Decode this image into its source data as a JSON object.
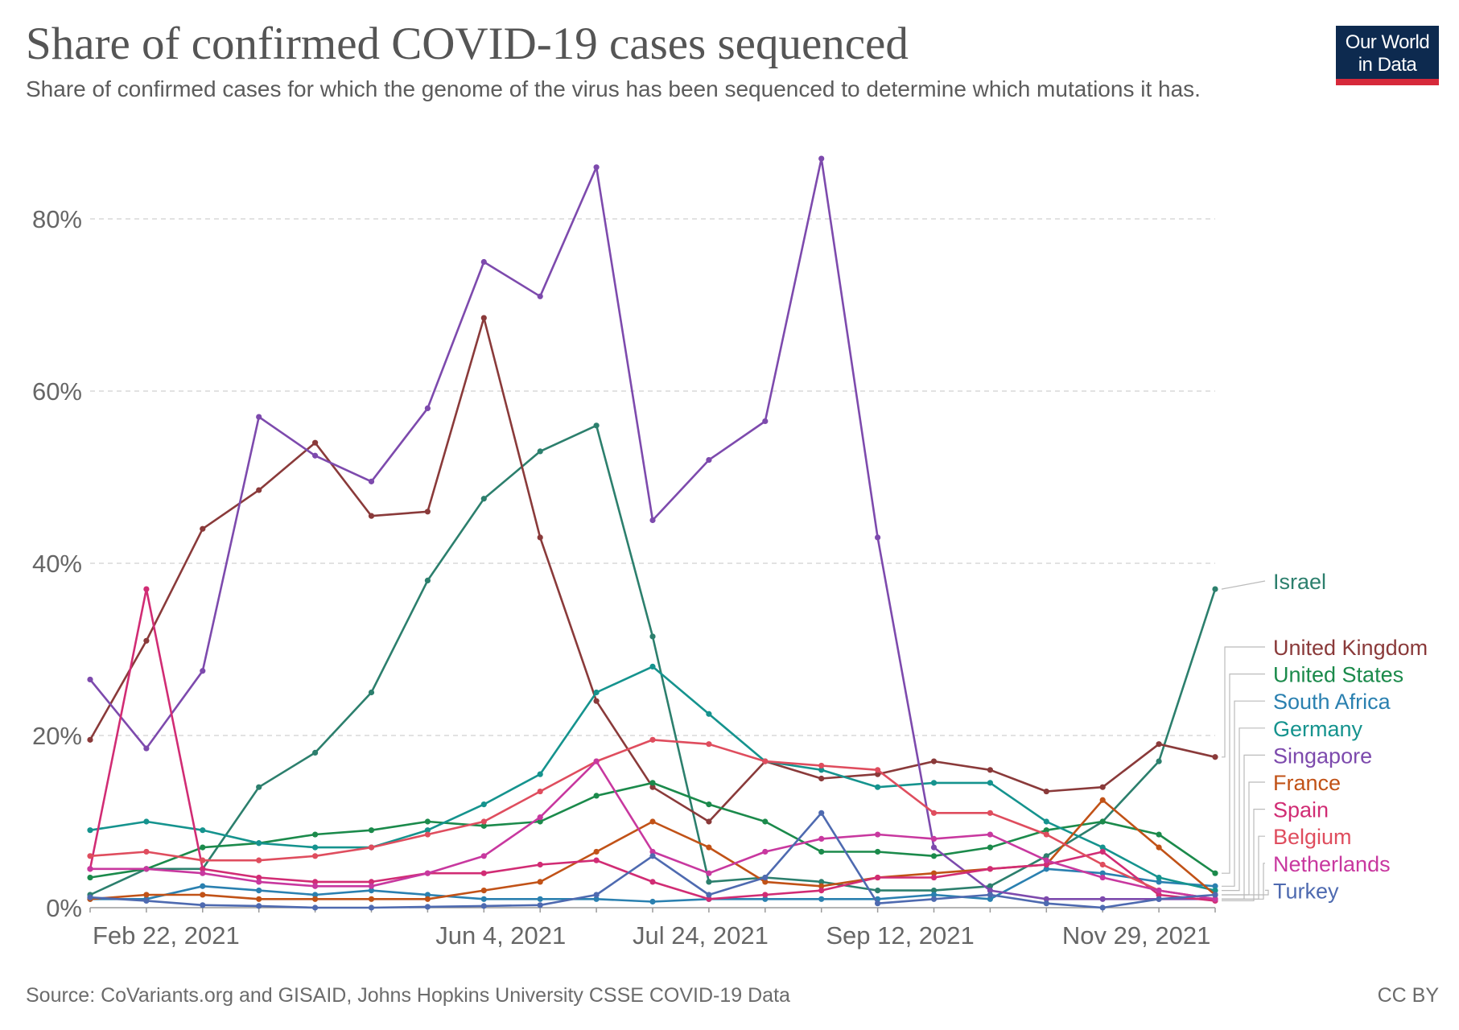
{
  "header": {
    "title": "Share of confirmed COVID-19 cases sequenced",
    "subtitle": "Share of confirmed cases for which the genome of the virus has been sequenced to determine which mutations it has."
  },
  "logo": {
    "line1": "Our World",
    "line2": "in Data"
  },
  "footer": {
    "source": "Source: CoVariants.org and GISAID, Johns Hopkins University CSSE COVID-19 Data",
    "license": "CC BY"
  },
  "chart_data": {
    "type": "line",
    "title": "Share of confirmed COVID-19 cases sequenced",
    "xlabel": "",
    "ylabel": "",
    "ylim": [
      0,
      90
    ],
    "yticks": [
      0,
      20,
      40,
      60,
      80
    ],
    "ytick_labels": [
      "0%",
      "20%",
      "40%",
      "60%",
      "80%"
    ],
    "grid": true,
    "x_tick_labels": [
      {
        "label": "Feb 22, 2021",
        "index": 1.35
      },
      {
        "label": "Jun 4, 2021",
        "index": 7.3
      },
      {
        "label": "Jul 24, 2021",
        "index": 10.85
      },
      {
        "label": "Sep 12, 2021",
        "index": 14.4
      },
      {
        "label": "Nov 29, 2021",
        "index": 18.6
      }
    ],
    "n_points": 21,
    "legend_position": "right",
    "series": [
      {
        "name": "Israel",
        "color": "#2c7f6d",
        "values": [
          1.5,
          4.5,
          4.5,
          14,
          18,
          25,
          38,
          47.5,
          53,
          56,
          31.5,
          3,
          3.5,
          3,
          2,
          2,
          2.5,
          6,
          10,
          17,
          37
        ]
      },
      {
        "name": "United Kingdom",
        "color": "#8a3a3a",
        "values": [
          19.5,
          31,
          44,
          48.5,
          54,
          45.5,
          46,
          68.5,
          43,
          24,
          14,
          10,
          17,
          15,
          15.5,
          17,
          16,
          13.5,
          14,
          19,
          17.5
        ]
      },
      {
        "name": "United States",
        "color": "#1b8a4b",
        "values": [
          3.5,
          4.5,
          7,
          7.5,
          8.5,
          9,
          10,
          9.5,
          10,
          13,
          14.5,
          12,
          10,
          6.5,
          6.5,
          6,
          7,
          9,
          10,
          8.5,
          4
        ]
      },
      {
        "name": "South Africa",
        "color": "#2a80b0",
        "values": [
          1,
          1,
          2.5,
          2,
          1.5,
          2,
          1.5,
          1,
          1,
          1,
          0.7,
          1,
          1,
          1,
          1,
          1.5,
          1,
          4.5,
          4,
          3,
          2.5
        ]
      },
      {
        "name": "Germany",
        "color": "#15938e",
        "values": [
          9,
          10,
          9,
          7.5,
          7,
          7,
          9,
          12,
          15.5,
          25,
          28,
          22.5,
          17,
          16,
          14,
          14.5,
          14.5,
          10,
          7,
          3.5,
          2
        ]
      },
      {
        "name": "Singapore",
        "color": "#7d4aad",
        "values": [
          26.5,
          18.5,
          27.5,
          57,
          52.5,
          49.5,
          58,
          75,
          71,
          86,
          45,
          52,
          56.5,
          87,
          43,
          7,
          2,
          1,
          1,
          1,
          1
        ]
      },
      {
        "name": "France",
        "color": "#c15217",
        "values": [
          1,
          1.5,
          1.5,
          1,
          1,
          1,
          1,
          2,
          3,
          6.5,
          10,
          7,
          3,
          2.5,
          3.5,
          4,
          4.5,
          5,
          12.5,
          7,
          1.5
        ]
      },
      {
        "name": "Spain",
        "color": "#d12c74",
        "values": [
          4.5,
          37,
          4.5,
          3.5,
          3,
          3,
          4,
          4,
          5,
          5.5,
          3,
          1,
          1.5,
          2,
          3.5,
          3.5,
          4.5,
          5,
          6.5,
          1.5,
          0.8
        ]
      },
      {
        "name": "Belgium",
        "color": "#df4d5e",
        "values": [
          6,
          6.5,
          5.5,
          5.5,
          6,
          7,
          8.5,
          10,
          13.5,
          17,
          19.5,
          19,
          17,
          16.5,
          16,
          11,
          11,
          8.5,
          5,
          2,
          1
        ]
      },
      {
        "name": "Netherlands",
        "color": "#c8389f",
        "values": [
          4.5,
          4.5,
          4,
          3,
          2.5,
          2.5,
          4,
          6,
          10.5,
          17,
          6.5,
          4,
          6.5,
          8,
          8.5,
          8,
          8.5,
          5.5,
          3.5,
          2,
          1
        ]
      },
      {
        "name": "Turkey",
        "color": "#4e6ab0",
        "values": [
          1.2,
          0.8,
          0.3,
          0.2,
          0,
          0,
          0.1,
          0.2,
          0.3,
          1.5,
          6,
          1.5,
          3.5,
          11,
          0.5,
          1,
          1.5,
          0.5,
          0,
          1,
          1.5
        ]
      }
    ]
  }
}
